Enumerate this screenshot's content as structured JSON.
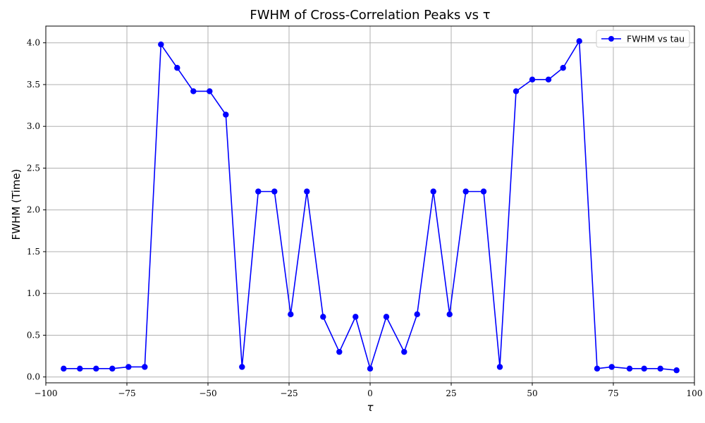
{
  "chart_data": {
    "type": "line",
    "title": "FWHM of Cross-Correlation Peaks vs τ",
    "xlabel": "τ",
    "ylabel": "FWHM (Time)",
    "xlim": [
      -100,
      100
    ],
    "ylim": [
      -0.07,
      4.2
    ],
    "xticks": [
      -100,
      -75,
      -50,
      -25,
      0,
      25,
      50,
      75,
      100
    ],
    "xtick_labels": [
      "−100",
      "−75",
      "−50",
      "−25",
      "0",
      "25",
      "50",
      "75",
      "100"
    ],
    "yticks": [
      0.0,
      0.5,
      1.0,
      1.5,
      2.0,
      2.5,
      3.0,
      3.5,
      4.0
    ],
    "ytick_labels": [
      "0.0",
      "0.5",
      "1.0",
      "1.5",
      "2.0",
      "2.5",
      "3.0",
      "3.5",
      "4.0"
    ],
    "grid": true,
    "legend": "top-right",
    "series": [
      {
        "name": "FWHM vs tau",
        "color": "#0000ff",
        "marker": "circle",
        "x": [
          -94.5,
          -89.5,
          -84.5,
          -79.5,
          -74.5,
          -69.5,
          -64.5,
          -59.5,
          -54.5,
          -49.5,
          -44.5,
          -39.5,
          -34.5,
          -29.5,
          -24.5,
          -19.5,
          -14.5,
          -9.5,
          -4.5,
          0,
          5,
          10.5,
          14.5,
          19.5,
          24.5,
          29.5,
          35,
          40,
          45,
          50,
          55,
          59.5,
          64.5,
          70,
          74.5,
          80,
          84.5,
          89.5,
          94.5
        ],
        "values": [
          0.1,
          0.1,
          0.1,
          0.1,
          0.12,
          0.12,
          3.98,
          3.7,
          3.42,
          3.42,
          3.14,
          0.12,
          2.22,
          2.22,
          0.75,
          2.22,
          0.72,
          0.3,
          0.72,
          0.1,
          0.72,
          0.3,
          0.75,
          2.22,
          0.75,
          2.22,
          2.22,
          0.12,
          3.42,
          3.56,
          3.56,
          3.7,
          4.02,
          0.1,
          0.12,
          0.1,
          0.1,
          0.1,
          0.08
        ]
      }
    ]
  }
}
